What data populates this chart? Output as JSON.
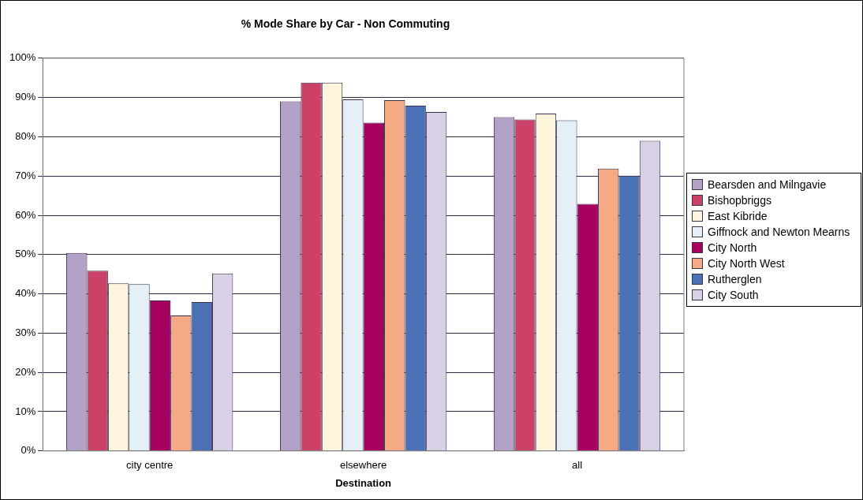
{
  "chart_data": {
    "type": "bar",
    "title": "% Mode Share by Car - Non Commuting",
    "xlabel": "Destination",
    "categories": [
      "city centre",
      "elsewhere",
      "all"
    ],
    "series": [
      {
        "name": "Bearsden and Milngavie",
        "color": "#b3a2c7",
        "values": [
          50.4,
          89.0,
          85.0
        ]
      },
      {
        "name": "Bishopbriggs",
        "color": "#cb4168",
        "values": [
          45.9,
          93.8,
          84.4
        ]
      },
      {
        "name": "East Kibride",
        "color": "#fdf6dc",
        "values": [
          42.7,
          93.8,
          85.9
        ]
      },
      {
        "name": "Giffnock and Newton Mearns",
        "color": "#e4eff6",
        "values": [
          42.5,
          89.5,
          84.2
        ]
      },
      {
        "name": "City North",
        "color": "#a80060",
        "values": [
          38.3,
          83.6,
          62.9
        ]
      },
      {
        "name": "City North West",
        "color": "#f5aa85",
        "values": [
          34.5,
          89.3,
          71.9
        ]
      },
      {
        "name": "Rutherglen",
        "color": "#4a70b5",
        "values": [
          37.9,
          87.9,
          70.1
        ]
      },
      {
        "name": "City South",
        "color": "#d9d0e6",
        "values": [
          45.2,
          86.3,
          79.0
        ]
      }
    ],
    "ylim": [
      0,
      100
    ],
    "yticks": [
      {
        "value": 0,
        "label": "0%"
      },
      {
        "value": 10,
        "label": "10%"
      },
      {
        "value": 20,
        "label": "20%"
      },
      {
        "value": 30,
        "label": "30%"
      },
      {
        "value": 40,
        "label": "40%"
      },
      {
        "value": 50,
        "label": "50%"
      },
      {
        "value": 60,
        "label": "60%"
      },
      {
        "value": 70,
        "label": "70%"
      },
      {
        "value": 80,
        "label": "80%"
      },
      {
        "value": 90,
        "label": "90%"
      },
      {
        "value": 100,
        "label": "100%"
      }
    ],
    "grid": "y",
    "legend": "right"
  }
}
